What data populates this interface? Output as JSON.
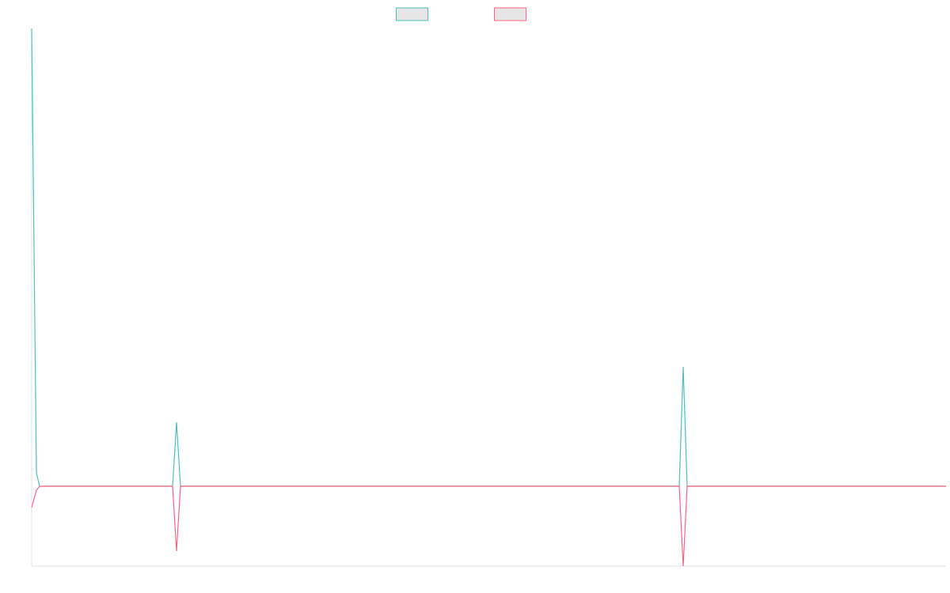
{
  "chart_data": {
    "type": "line",
    "xlim": [
      0,
      1155
    ],
    "ylim": [
      -101,
      579
    ],
    "x": [
      0,
      6,
      10,
      178,
      183,
      188,
      818,
      823,
      828,
      1155
    ],
    "series": [
      {
        "color": "#4bc0c0",
        "values": [
          579,
          17,
          0,
          0,
          81,
          0,
          0,
          151,
          0,
          0
        ]
      },
      {
        "color": "#ff6384",
        "values": [
          -27,
          -5,
          0,
          0,
          -82,
          0,
          0,
          -101,
          0,
          0
        ]
      }
    ],
    "legend": "top"
  }
}
